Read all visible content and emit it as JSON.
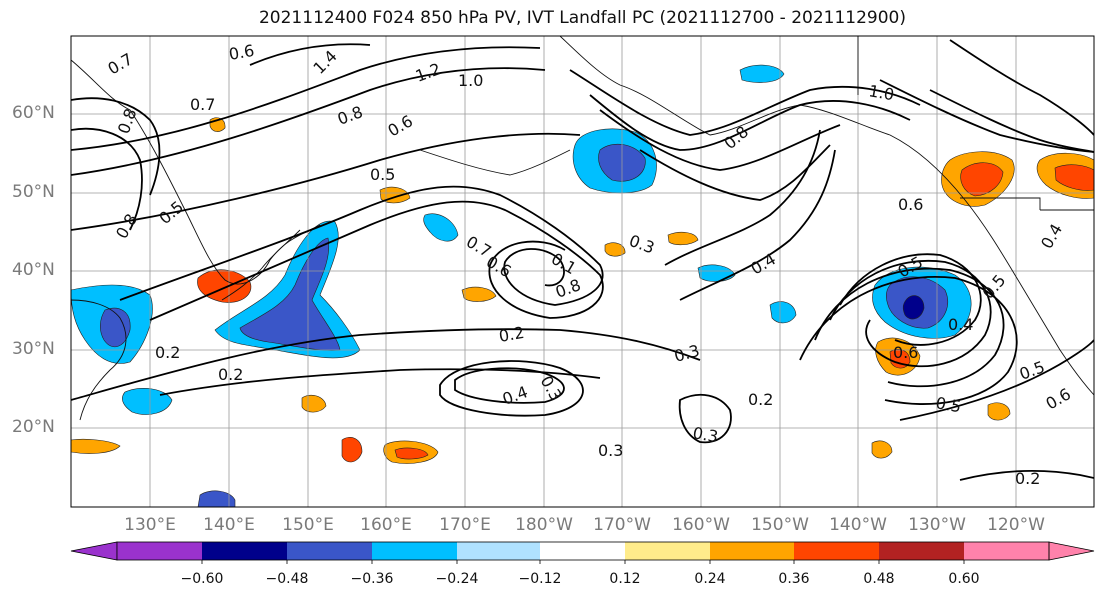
{
  "title": "2021112400 F024 850 hPa PV, IVT Landfall PC (2021112700 - 2021112900)",
  "lat_labels": [
    "60°N",
    "50°N",
    "40°N",
    "30°N",
    "20°N"
  ],
  "lon_labels": [
    "130°E",
    "140°E",
    "150°E",
    "160°E",
    "170°E",
    "180°W",
    "170°W",
    "160°W",
    "150°W",
    "140°W",
    "130°W",
    "120°W"
  ],
  "colorbar": {
    "labels": [
      "−0.60",
      "−0.48",
      "−0.36",
      "−0.24",
      "−0.12",
      "0.12",
      "0.24",
      "0.36",
      "0.48",
      "0.60"
    ],
    "colors": [
      "#9a32cd",
      "#00008b",
      "#3a56c8",
      "#00bfff",
      "#b0e2ff",
      "#ffffff",
      "#ffec8b",
      "#ffa500",
      "#ff4500",
      "#b22222",
      "#ff82ab"
    ]
  },
  "contour_labels": [
    "0.7",
    "0.6",
    "0.8",
    "0.7",
    "1.4",
    "1.2",
    "1.0",
    "0.8",
    "0.6",
    "0.5",
    "0.8",
    "0.5",
    "1.0",
    "0.8",
    "0.6",
    "0.7",
    "0.6",
    "0.1",
    "0.8",
    "0.3",
    "0.4",
    "0.2",
    "0.2",
    "0.3",
    "0.4",
    "0.3",
    "0.2",
    "0.3",
    "0.2",
    "0.5",
    "0.4",
    "0.6",
    "0.5",
    "0.5",
    "0.6",
    "0.5",
    "0.2",
    "0.3",
    "0.4"
  ]
}
